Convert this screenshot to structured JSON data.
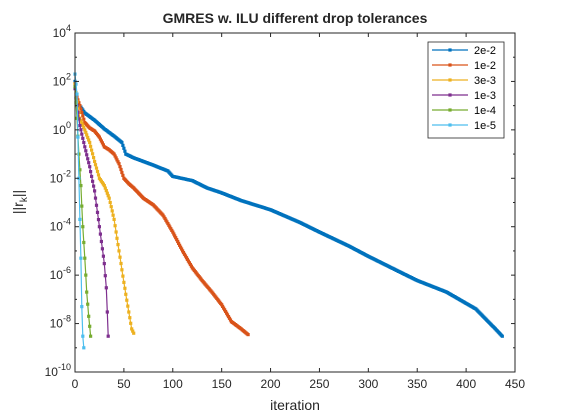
{
  "chart_data": {
    "type": "line",
    "title": "GMRES w. ILU different drop tolerances",
    "xlabel": "iteration",
    "ylabel_base": "||r",
    "ylabel_sub": "k",
    "ylabel_end": "||",
    "xscale": "linear",
    "yscale": "log",
    "xlim": [
      0,
      450
    ],
    "ylim_exp": [
      -10,
      4
    ],
    "xticks": [
      0,
      50,
      100,
      150,
      200,
      250,
      300,
      350,
      400,
      450
    ],
    "yticks_exp": [
      -10,
      -8,
      -6,
      -4,
      -2,
      0,
      2,
      4
    ],
    "grid": false,
    "legend_position": "top-right",
    "series": [
      {
        "name": "2e-2",
        "color": "#0072BD",
        "points": [
          [
            0,
            100
          ],
          [
            1,
            20
          ],
          [
            5,
            10
          ],
          [
            10,
            5
          ],
          [
            20,
            2.5
          ],
          [
            30,
            1.1
          ],
          [
            40,
            0.55
          ],
          [
            48,
            0.3
          ],
          [
            52,
            0.1
          ],
          [
            60,
            0.07
          ],
          [
            80,
            0.035
          ],
          [
            95,
            0.02
          ],
          [
            100,
            0.012
          ],
          [
            120,
            0.008
          ],
          [
            135,
            0.004
          ],
          [
            150,
            0.0025
          ],
          [
            170,
            0.0012
          ],
          [
            200,
            0.0005
          ],
          [
            230,
            0.00015
          ],
          [
            250,
            6e-05
          ],
          [
            280,
            1.6e-05
          ],
          [
            300,
            6e-06
          ],
          [
            330,
            1.5e-06
          ],
          [
            350,
            6e-07
          ],
          [
            380,
            2e-07
          ],
          [
            410,
            4e-08
          ],
          [
            430,
            6e-09
          ],
          [
            437,
            3e-09
          ]
        ]
      },
      {
        "name": "1e-2",
        "color": "#D95319",
        "points": [
          [
            0,
            80
          ],
          [
            1,
            30
          ],
          [
            5,
            10
          ],
          [
            10,
            2
          ],
          [
            15,
            1.2
          ],
          [
            20,
            0.9
          ],
          [
            25,
            0.5
          ],
          [
            30,
            0.2
          ],
          [
            35,
            0.15
          ],
          [
            40,
            0.1
          ],
          [
            45,
            0.04
          ],
          [
            50,
            0.01
          ],
          [
            55,
            0.006
          ],
          [
            60,
            0.004
          ],
          [
            70,
            0.0015
          ],
          [
            80,
            0.0008
          ],
          [
            90,
            0.0003
          ],
          [
            100,
            6e-05
          ],
          [
            110,
            1e-05
          ],
          [
            120,
            2e-06
          ],
          [
            130,
            6e-07
          ],
          [
            140,
            2e-07
          ],
          [
            150,
            6e-08
          ],
          [
            160,
            1.2e-08
          ],
          [
            170,
            6e-09
          ],
          [
            177,
            3.5e-09
          ]
        ]
      },
      {
        "name": "3e-3",
        "color": "#EDB120",
        "points": [
          [
            0,
            80
          ],
          [
            2,
            15
          ],
          [
            5,
            3
          ],
          [
            10,
            1
          ],
          [
            15,
            0.3
          ],
          [
            20,
            0.05
          ],
          [
            25,
            0.01
          ],
          [
            30,
            0.005
          ],
          [
            35,
            0.0015
          ],
          [
            40,
            0.0002
          ],
          [
            45,
            1e-05
          ],
          [
            50,
            5e-07
          ],
          [
            55,
            3e-08
          ],
          [
            58,
            6e-09
          ],
          [
            60,
            4e-09
          ]
        ]
      },
      {
        "name": "1e-3",
        "color": "#7E2F8E",
        "points": [
          [
            0,
            50
          ],
          [
            2,
            10
          ],
          [
            5,
            1.5
          ],
          [
            10,
            0.2
          ],
          [
            15,
            0.03
          ],
          [
            20,
            0.003
          ],
          [
            25,
            0.0001
          ],
          [
            30,
            3e-06
          ],
          [
            32,
            3e-07
          ],
          [
            34,
            3e-09
          ]
        ]
      },
      {
        "name": "1e-4",
        "color": "#77AC30",
        "points": [
          [
            0,
            60
          ],
          [
            2,
            3
          ],
          [
            4,
            0.1
          ],
          [
            6,
            0.005
          ],
          [
            8,
            0.0001
          ],
          [
            10,
            5e-06
          ],
          [
            12,
            2e-07
          ],
          [
            14,
            2e-08
          ],
          [
            16,
            3e-09
          ]
        ]
      },
      {
        "name": "1e-5",
        "color": "#4DBEEE",
        "points": [
          [
            0,
            200
          ],
          [
            2,
            30
          ],
          [
            3,
            0.5
          ],
          [
            4,
            0.01
          ],
          [
            5,
            0.0002
          ],
          [
            6,
            5e-06
          ],
          [
            7,
            5e-08
          ],
          [
            8,
            3e-09
          ],
          [
            9,
            1e-09
          ]
        ]
      }
    ]
  }
}
